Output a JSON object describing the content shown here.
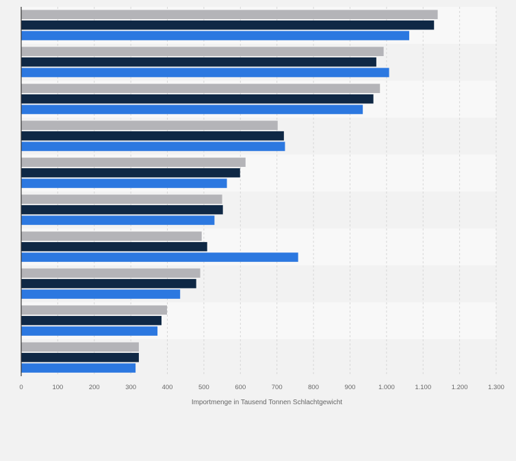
{
  "chart_data": {
    "type": "bar",
    "orientation": "horizontal",
    "categories": [
      "",
      "",
      "",
      "",
      "",
      "",
      "",
      "",
      "",
      ""
    ],
    "series": [
      {
        "color": "#b4b4b8",
        "values": [
          1140,
          992,
          982,
          702,
          614,
          550,
          494,
          490,
          399,
          322
        ]
      },
      {
        "color": "#0f2845",
        "values": [
          1130,
          972,
          964,
          719,
          599,
          552,
          509,
          479,
          384,
          322
        ]
      },
      {
        "color": "#2c78e0",
        "values": [
          1062,
          1007,
          935,
          722,
          563,
          529,
          758,
          435,
          373,
          313
        ]
      }
    ],
    "xlabel": "Importmenge in Tausend Tonnen Schlachtgewicht",
    "xlim": [
      0,
      1300
    ],
    "xticks": [
      0,
      100,
      200,
      300,
      400,
      500,
      600,
      700,
      800,
      900,
      1000,
      1100,
      1200,
      1300
    ],
    "xtick_labels": [
      "0",
      "100",
      "200",
      "300",
      "400",
      "500",
      "600",
      "700",
      "800",
      "900",
      "1.000",
      "1.100",
      "1.200",
      "1.300"
    ],
    "grid": true,
    "legend": "none"
  }
}
